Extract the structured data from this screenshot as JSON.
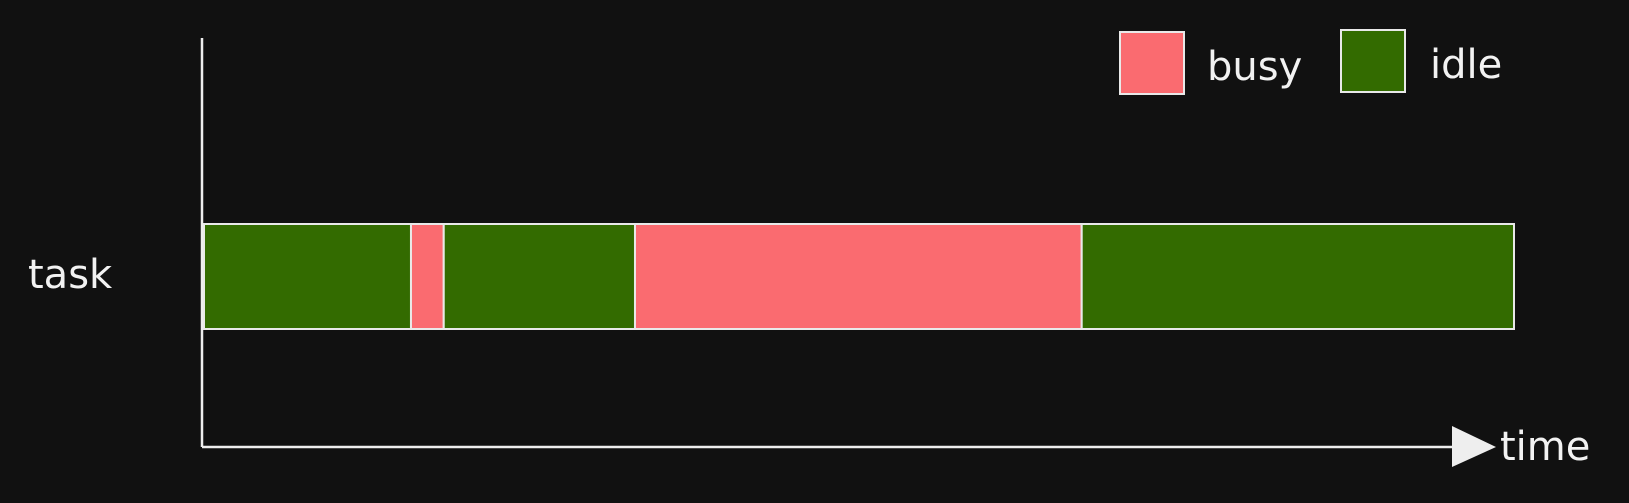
{
  "chart_data": {
    "type": "bar",
    "orientation": "horizontal-timeline",
    "title": "",
    "xlabel": "time",
    "ylabel": "",
    "categories": [
      "task"
    ],
    "xlim": [
      0,
      100
    ],
    "grid": false,
    "legend_placement": "top-right",
    "legend": [
      {
        "name": "busy",
        "color": "#fa6b70"
      },
      {
        "name": "idle",
        "color": "#336b00"
      }
    ],
    "segments": [
      {
        "category": "task",
        "state": "idle",
        "start": 0,
        "end": 15.8
      },
      {
        "category": "task",
        "state": "busy",
        "start": 15.8,
        "end": 18.3
      },
      {
        "category": "task",
        "state": "idle",
        "start": 18.3,
        "end": 32.9
      },
      {
        "category": "task",
        "state": "busy",
        "start": 32.9,
        "end": 67.0
      },
      {
        "category": "task",
        "state": "idle",
        "start": 67.0,
        "end": 100
      }
    ]
  }
}
